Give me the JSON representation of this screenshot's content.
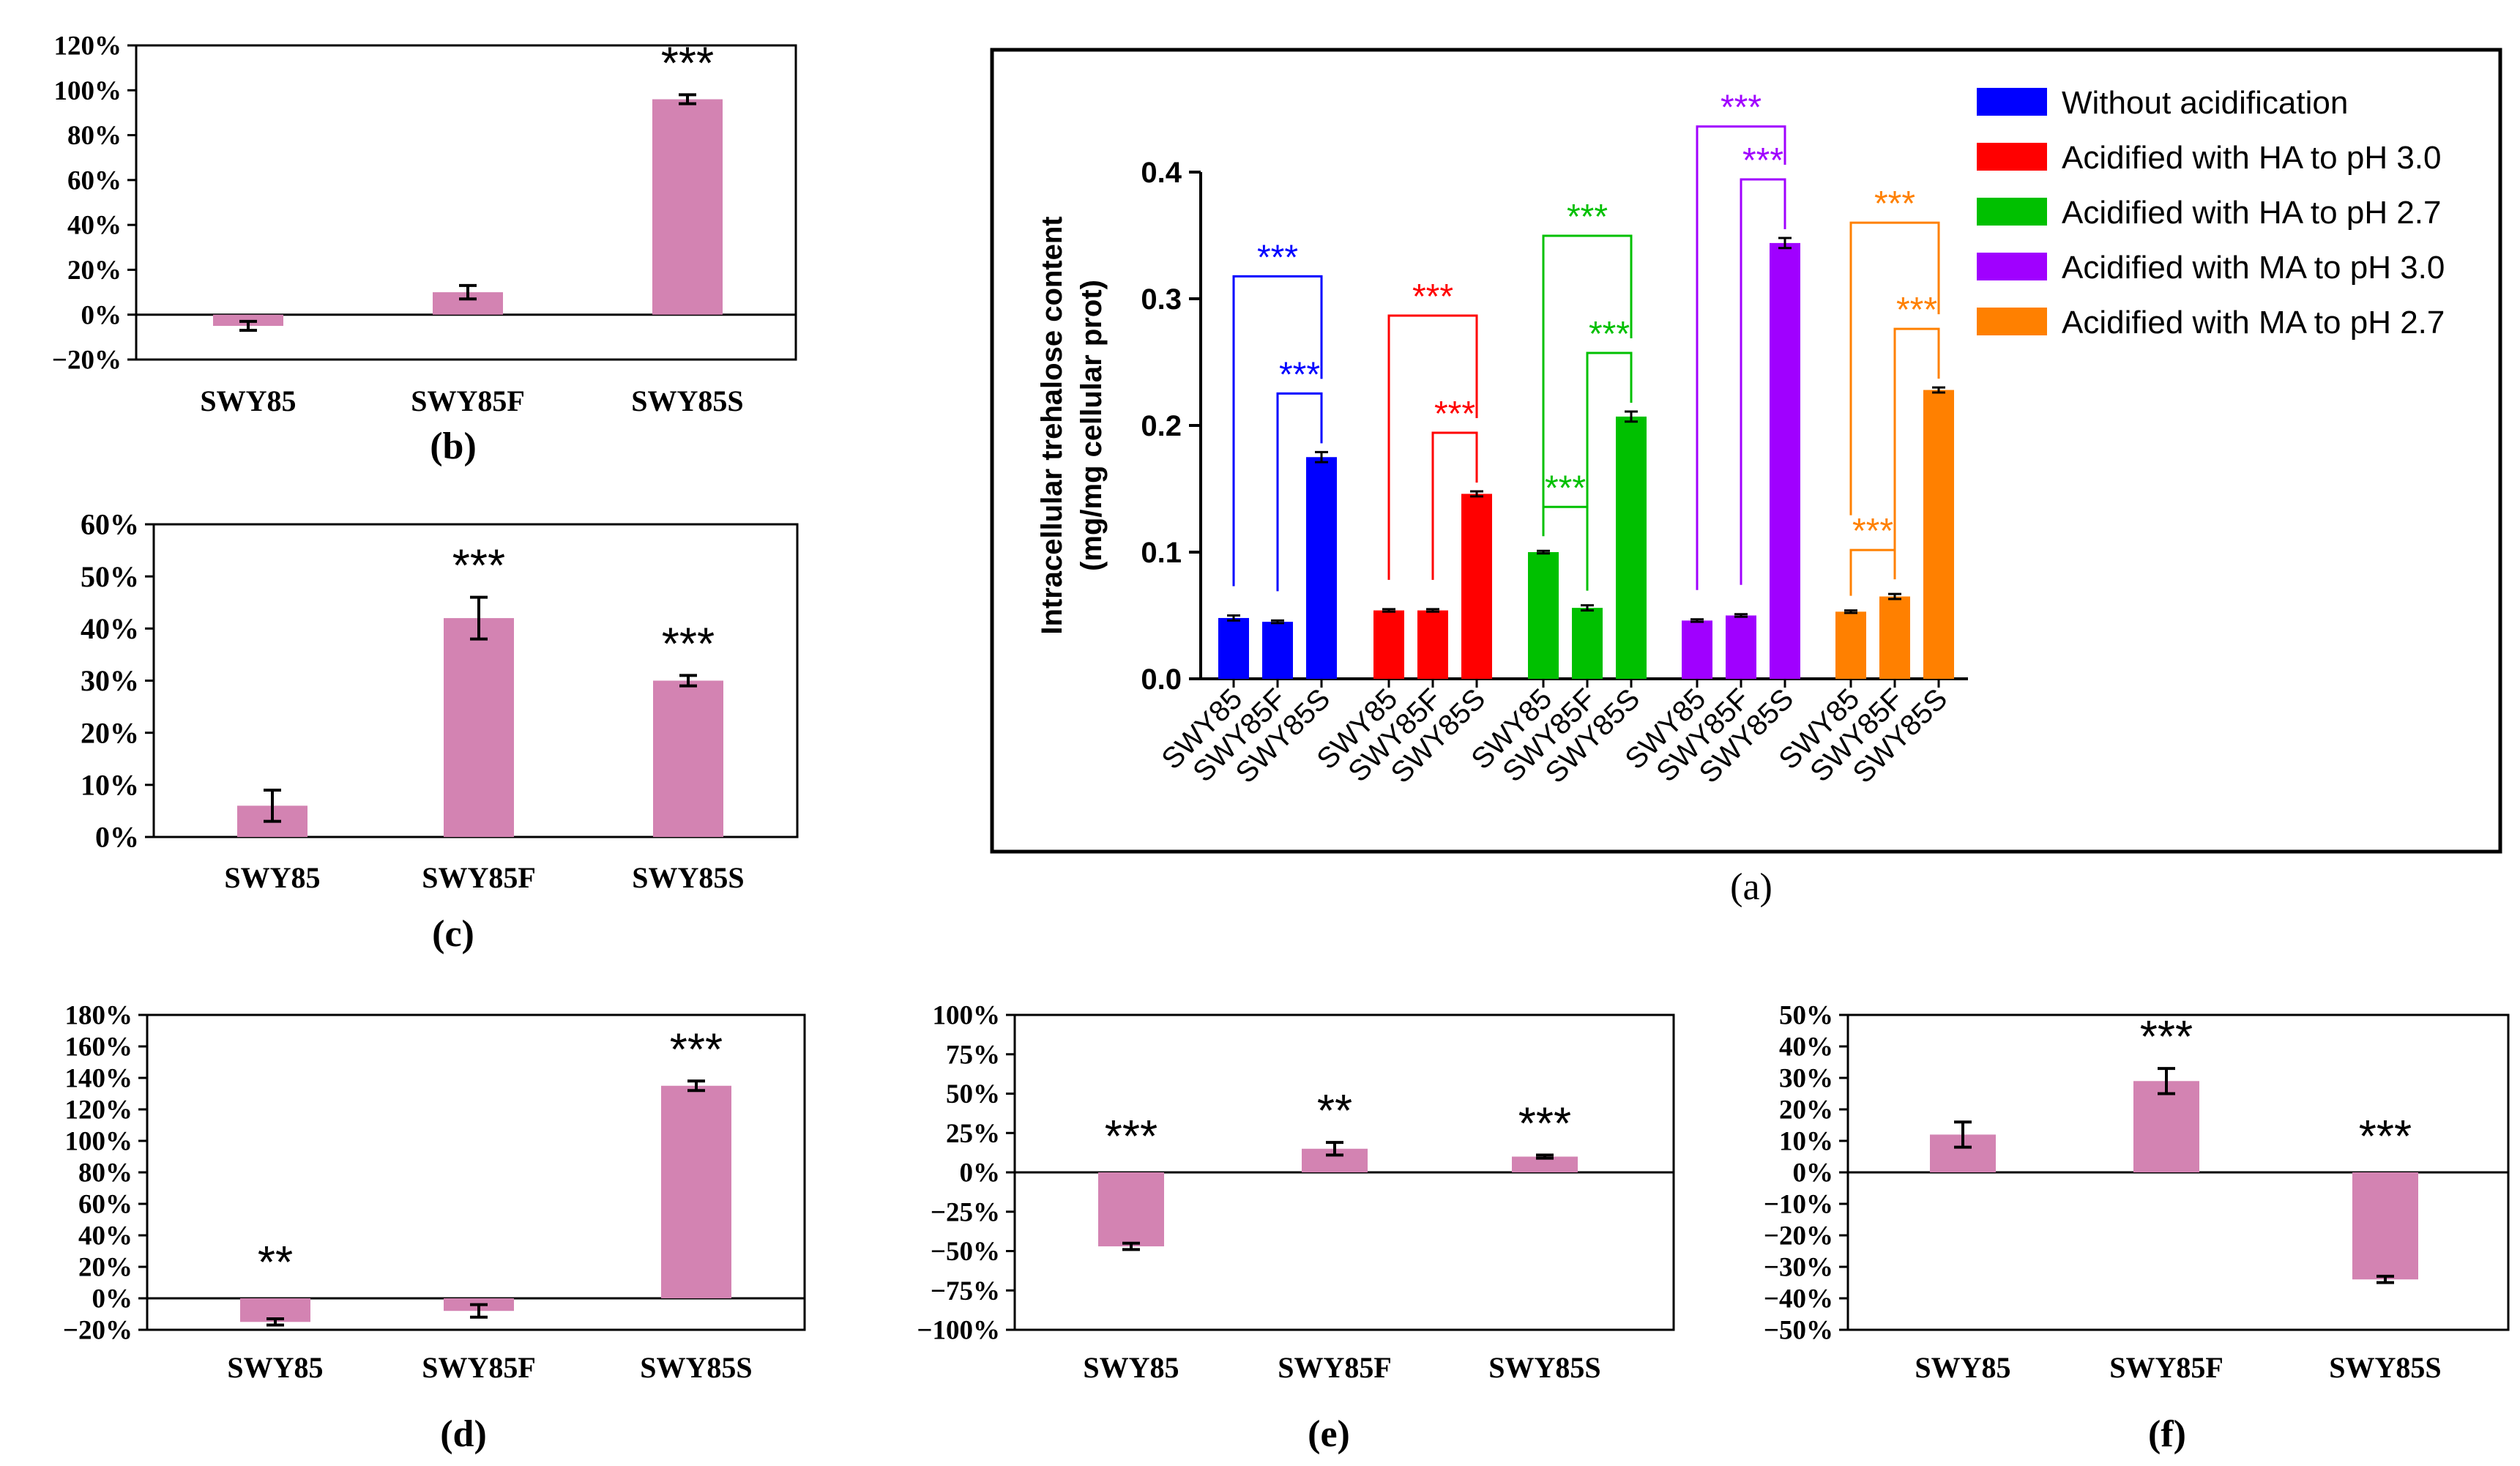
{
  "figure": {
    "captions": {
      "a": "(a)",
      "b": "(b)",
      "c": "(c)",
      "d": "(d)",
      "e": "(e)",
      "f": "(f)"
    }
  },
  "colors": {
    "bar_pink": "#d383b2",
    "without": "#0000ff",
    "ha30": "#ff0000",
    "ha27": "#00c000",
    "ma30": "#a000ff",
    "ma27": "#ff8000"
  },
  "chart_data": [
    {
      "id": "a",
      "type": "bar",
      "caption": "(a)",
      "ylabel": "Intracellular trehalose content (mg/mg cellular prot)",
      "ylabel_lines": [
        "Intracellular trehalose content",
        "(mg/mg cellular prot)"
      ],
      "ylim": [
        0,
        0.4
      ],
      "yticks": [
        0.0,
        0.1,
        0.2,
        0.3,
        0.4
      ],
      "ytick_labels": [
        "0.0",
        "0.1",
        "0.2",
        "0.3",
        "0.4"
      ],
      "categories": [
        "SWY85",
        "SWY85F",
        "SWY85S"
      ],
      "legend_position": "top-right",
      "series": [
        {
          "name": "Without acidification",
          "color": "#0000ff",
          "values": [
            0.048,
            0.045,
            0.175
          ],
          "errors": [
            0.002,
            0.001,
            0.004
          ],
          "significance": [
            {
              "from": 0,
              "to": 2,
              "label": "***"
            },
            {
              "from": 1,
              "to": 2,
              "label": "***"
            }
          ]
        },
        {
          "name": "Acidified with HA to pH 3.0",
          "color": "#ff0000",
          "values": [
            0.054,
            0.054,
            0.146
          ],
          "errors": [
            0.001,
            0.001,
            0.002
          ],
          "significance": [
            {
              "from": 0,
              "to": 2,
              "label": "***"
            },
            {
              "from": 1,
              "to": 2,
              "label": "***"
            }
          ]
        },
        {
          "name": "Acidified with HA to pH 2.7",
          "color": "#00c000",
          "values": [
            0.1,
            0.056,
            0.207
          ],
          "errors": [
            0.001,
            0.002,
            0.004
          ],
          "significance": [
            {
              "from": 0,
              "to": 1,
              "label": "***"
            },
            {
              "from": 0,
              "to": 2,
              "label": "***"
            },
            {
              "from": 1,
              "to": 2,
              "label": "***"
            }
          ]
        },
        {
          "name": "Acidified with MA to pH 3.0",
          "color": "#a000ff",
          "values": [
            0.046,
            0.05,
            0.344
          ],
          "errors": [
            0.001,
            0.001,
            0.004
          ],
          "significance": [
            {
              "from": 0,
              "to": 2,
              "label": "***"
            },
            {
              "from": 1,
              "to": 2,
              "label": "***"
            }
          ]
        },
        {
          "name": "Acidified with MA to pH 2.7",
          "color": "#ff8000",
          "values": [
            0.053,
            0.065,
            0.228
          ],
          "errors": [
            0.001,
            0.002,
            0.002
          ],
          "significance": [
            {
              "from": 0,
              "to": 1,
              "label": "***"
            },
            {
              "from": 0,
              "to": 2,
              "label": "***"
            },
            {
              "from": 1,
              "to": 2,
              "label": "***"
            }
          ]
        }
      ]
    },
    {
      "id": "b",
      "type": "bar",
      "caption": "(b)",
      "categories": [
        "SWY85",
        "SWY85F",
        "SWY85S"
      ],
      "values": [
        -5,
        10,
        96
      ],
      "errors": [
        2,
        3,
        2
      ],
      "significance": [
        "",
        "",
        "***"
      ],
      "ylim": [
        -20,
        120
      ],
      "yticks": [
        -20,
        0,
        20,
        40,
        60,
        80,
        100,
        120
      ],
      "ytick_labels": [
        "−20%",
        "0%",
        "20%",
        "40%",
        "60%",
        "80%",
        "100%",
        "120%"
      ],
      "ylabel": "",
      "xlabel": ""
    },
    {
      "id": "c",
      "type": "bar",
      "caption": "(c)",
      "categories": [
        "SWY85",
        "SWY85F",
        "SWY85S"
      ],
      "values": [
        6,
        42,
        30
      ],
      "errors": [
        3,
        4,
        1
      ],
      "significance": [
        "",
        "***",
        "***"
      ],
      "ylim": [
        0,
        60
      ],
      "yticks": [
        0,
        10,
        20,
        30,
        40,
        50,
        60
      ],
      "ytick_labels": [
        "0%",
        "10%",
        "20%",
        "30%",
        "40%",
        "50%",
        "60%"
      ],
      "ylabel": "",
      "xlabel": ""
    },
    {
      "id": "d",
      "type": "bar",
      "caption": "(d)",
      "categories": [
        "SWY85",
        "SWY85F",
        "SWY85S"
      ],
      "values": [
        -15,
        -8,
        135
      ],
      "errors": [
        2,
        4,
        3
      ],
      "significance": [
        "**",
        "",
        "***"
      ],
      "ylim": [
        -20,
        180
      ],
      "yticks": [
        -20,
        0,
        20,
        40,
        60,
        80,
        100,
        120,
        140,
        160,
        180
      ],
      "ytick_labels": [
        "−20%",
        "0%",
        "20%",
        "40%",
        "60%",
        "80%",
        "100%",
        "120%",
        "140%",
        "160%",
        "180%"
      ],
      "ylabel": "",
      "xlabel": ""
    },
    {
      "id": "e",
      "type": "bar",
      "caption": "(e)",
      "categories": [
        "SWY85",
        "SWY85F",
        "SWY85S"
      ],
      "values": [
        -47,
        15,
        10
      ],
      "errors": [
        2,
        4,
        1
      ],
      "significance": [
        "***",
        "**",
        "***"
      ],
      "ylim": [
        -100,
        100
      ],
      "yticks": [
        -100,
        -75,
        -50,
        -25,
        0,
        25,
        50,
        75,
        100
      ],
      "ytick_labels": [
        "−100%",
        "−75%",
        "−50%",
        "−25%",
        "0%",
        "25%",
        "50%",
        "75%",
        "100%"
      ],
      "ylabel": "",
      "xlabel": ""
    },
    {
      "id": "f",
      "type": "bar",
      "caption": "(f)",
      "categories": [
        "SWY85",
        "SWY85F",
        "SWY85S"
      ],
      "values": [
        12,
        29,
        -34
      ],
      "errors": [
        4,
        4,
        1
      ],
      "significance": [
        "",
        "***",
        "***"
      ],
      "ylim": [
        -50,
        50
      ],
      "yticks": [
        -50,
        -40,
        -30,
        -20,
        -10,
        0,
        10,
        20,
        30,
        40,
        50
      ],
      "ytick_labels": [
        "−50%",
        "−40%",
        "−30%",
        "−20%",
        "−10%",
        "0%",
        "10%",
        "20%",
        "30%",
        "40%",
        "50%"
      ],
      "ylabel": "",
      "xlabel": ""
    }
  ]
}
